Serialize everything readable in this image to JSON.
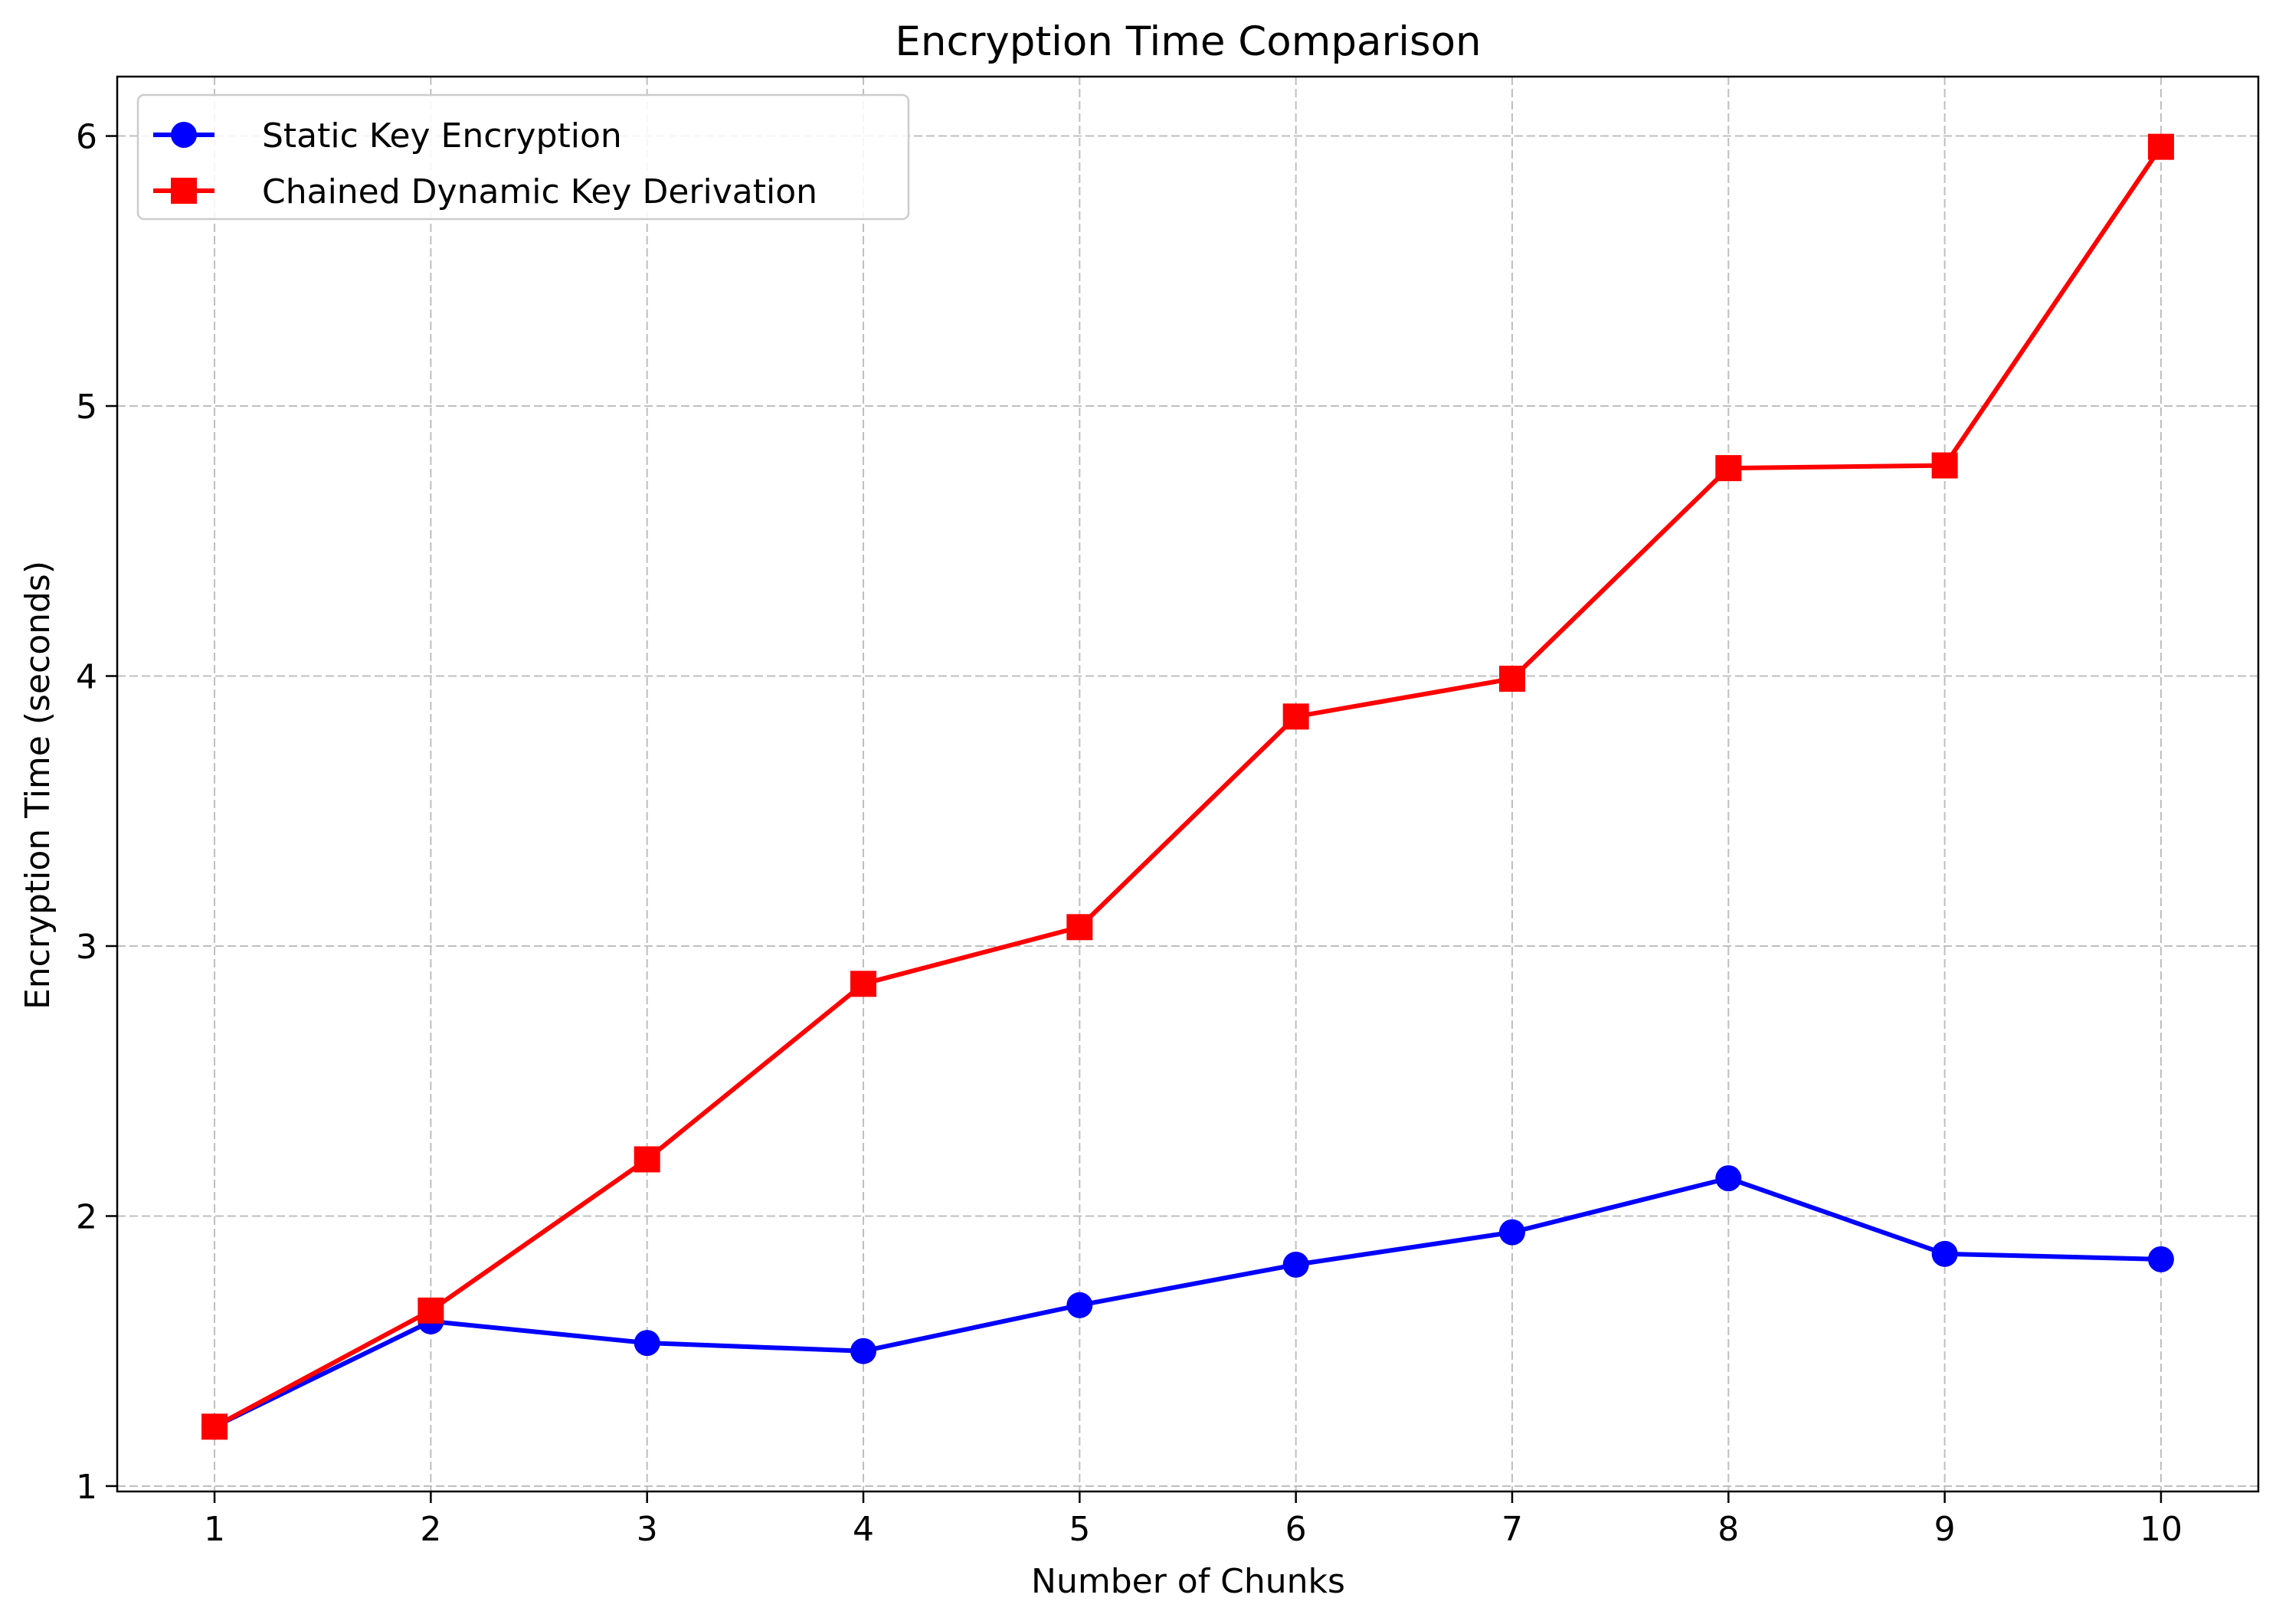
{
  "chart_data": {
    "type": "line",
    "title": "Encryption Time Comparison",
    "xlabel": "Number of Chunks",
    "ylabel": "Encryption Time (seconds)",
    "x": [
      1,
      2,
      3,
      4,
      5,
      6,
      7,
      8,
      9,
      10
    ],
    "xlim": [
      0.55,
      10.45
    ],
    "ylim": [
      0.98,
      6.22
    ],
    "xticks": [
      "1",
      "2",
      "3",
      "4",
      "5",
      "6",
      "7",
      "8",
      "9",
      "10"
    ],
    "yticks": [
      "1",
      "2",
      "3",
      "4",
      "5",
      "6"
    ],
    "grid": true,
    "legend_position": "top-left",
    "series": [
      {
        "name": "Static Key Encryption",
        "color": "#0000ff",
        "marker": "circle",
        "values": [
          1.22,
          1.61,
          1.53,
          1.5,
          1.67,
          1.82,
          1.94,
          2.14,
          1.86,
          1.84
        ]
      },
      {
        "name": "Chained Dynamic Key Derivation",
        "color": "#ff0000",
        "marker": "square",
        "values": [
          1.22,
          1.65,
          2.21,
          2.86,
          3.07,
          3.85,
          3.99,
          4.77,
          4.78,
          5.96
        ]
      }
    ]
  }
}
